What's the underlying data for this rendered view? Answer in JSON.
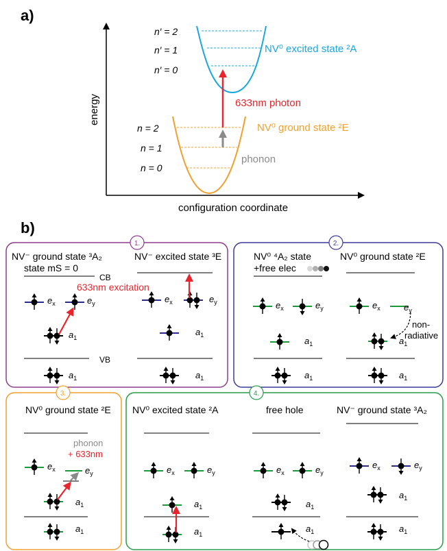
{
  "panel_a": {
    "label": "a)",
    "y_axis_label": "energy",
    "x_axis_label": "configuration coordinate",
    "excited_levels": [
      "n′ = 2",
      "n′ = 1",
      "n′ = 0"
    ],
    "ground_levels": [
      "n = 2",
      "n = 1",
      "n = 0"
    ],
    "excited_state_label": "NV⁰ excited state ²A",
    "ground_state_label": "NV⁰ ground state ²E",
    "photon_label": "633nm photon",
    "phonon_label": "phonon",
    "colors": {
      "excited": "#1aa7e0",
      "ground": "#f0a030",
      "photon": "#e8242c",
      "phonon": "#8a8a8a"
    }
  },
  "panel_b": {
    "label": "b)",
    "boxes": [
      {
        "number": "1.",
        "color": "#8e3c8e",
        "title_left": "NV⁻ ground state ³A₂",
        "subtitle_left": "state mS = 0",
        "cb": "CB",
        "vb": "VB",
        "excitation": "633nm excitation",
        "title_right": "NV⁻ excited state ³E"
      },
      {
        "number": "2.",
        "color": "#3a3a9a",
        "title_left": "NV⁰ ⁴A₂ state",
        "subtitle_left": "+free elec",
        "title_right": "NV⁰ ground state ²E",
        "nonradiative": "non-\nradiative"
      },
      {
        "number": "3.",
        "color": "#f0a030",
        "title": "NV⁰ ground state ²E",
        "phonon": "phonon",
        "plus633": "+ 633nm"
      },
      {
        "number": "4.",
        "color": "#2a9a4a",
        "title_left": "NV⁰ excited state ²A",
        "title_mid": "free hole",
        "title_right": "NV⁻ ground state ³A₂"
      }
    ],
    "orbitals": {
      "ex": "e",
      "ex_sub": "x",
      "ey": "e",
      "ey_sub": "y",
      "a1": "a",
      "a1_sub": "1"
    }
  }
}
